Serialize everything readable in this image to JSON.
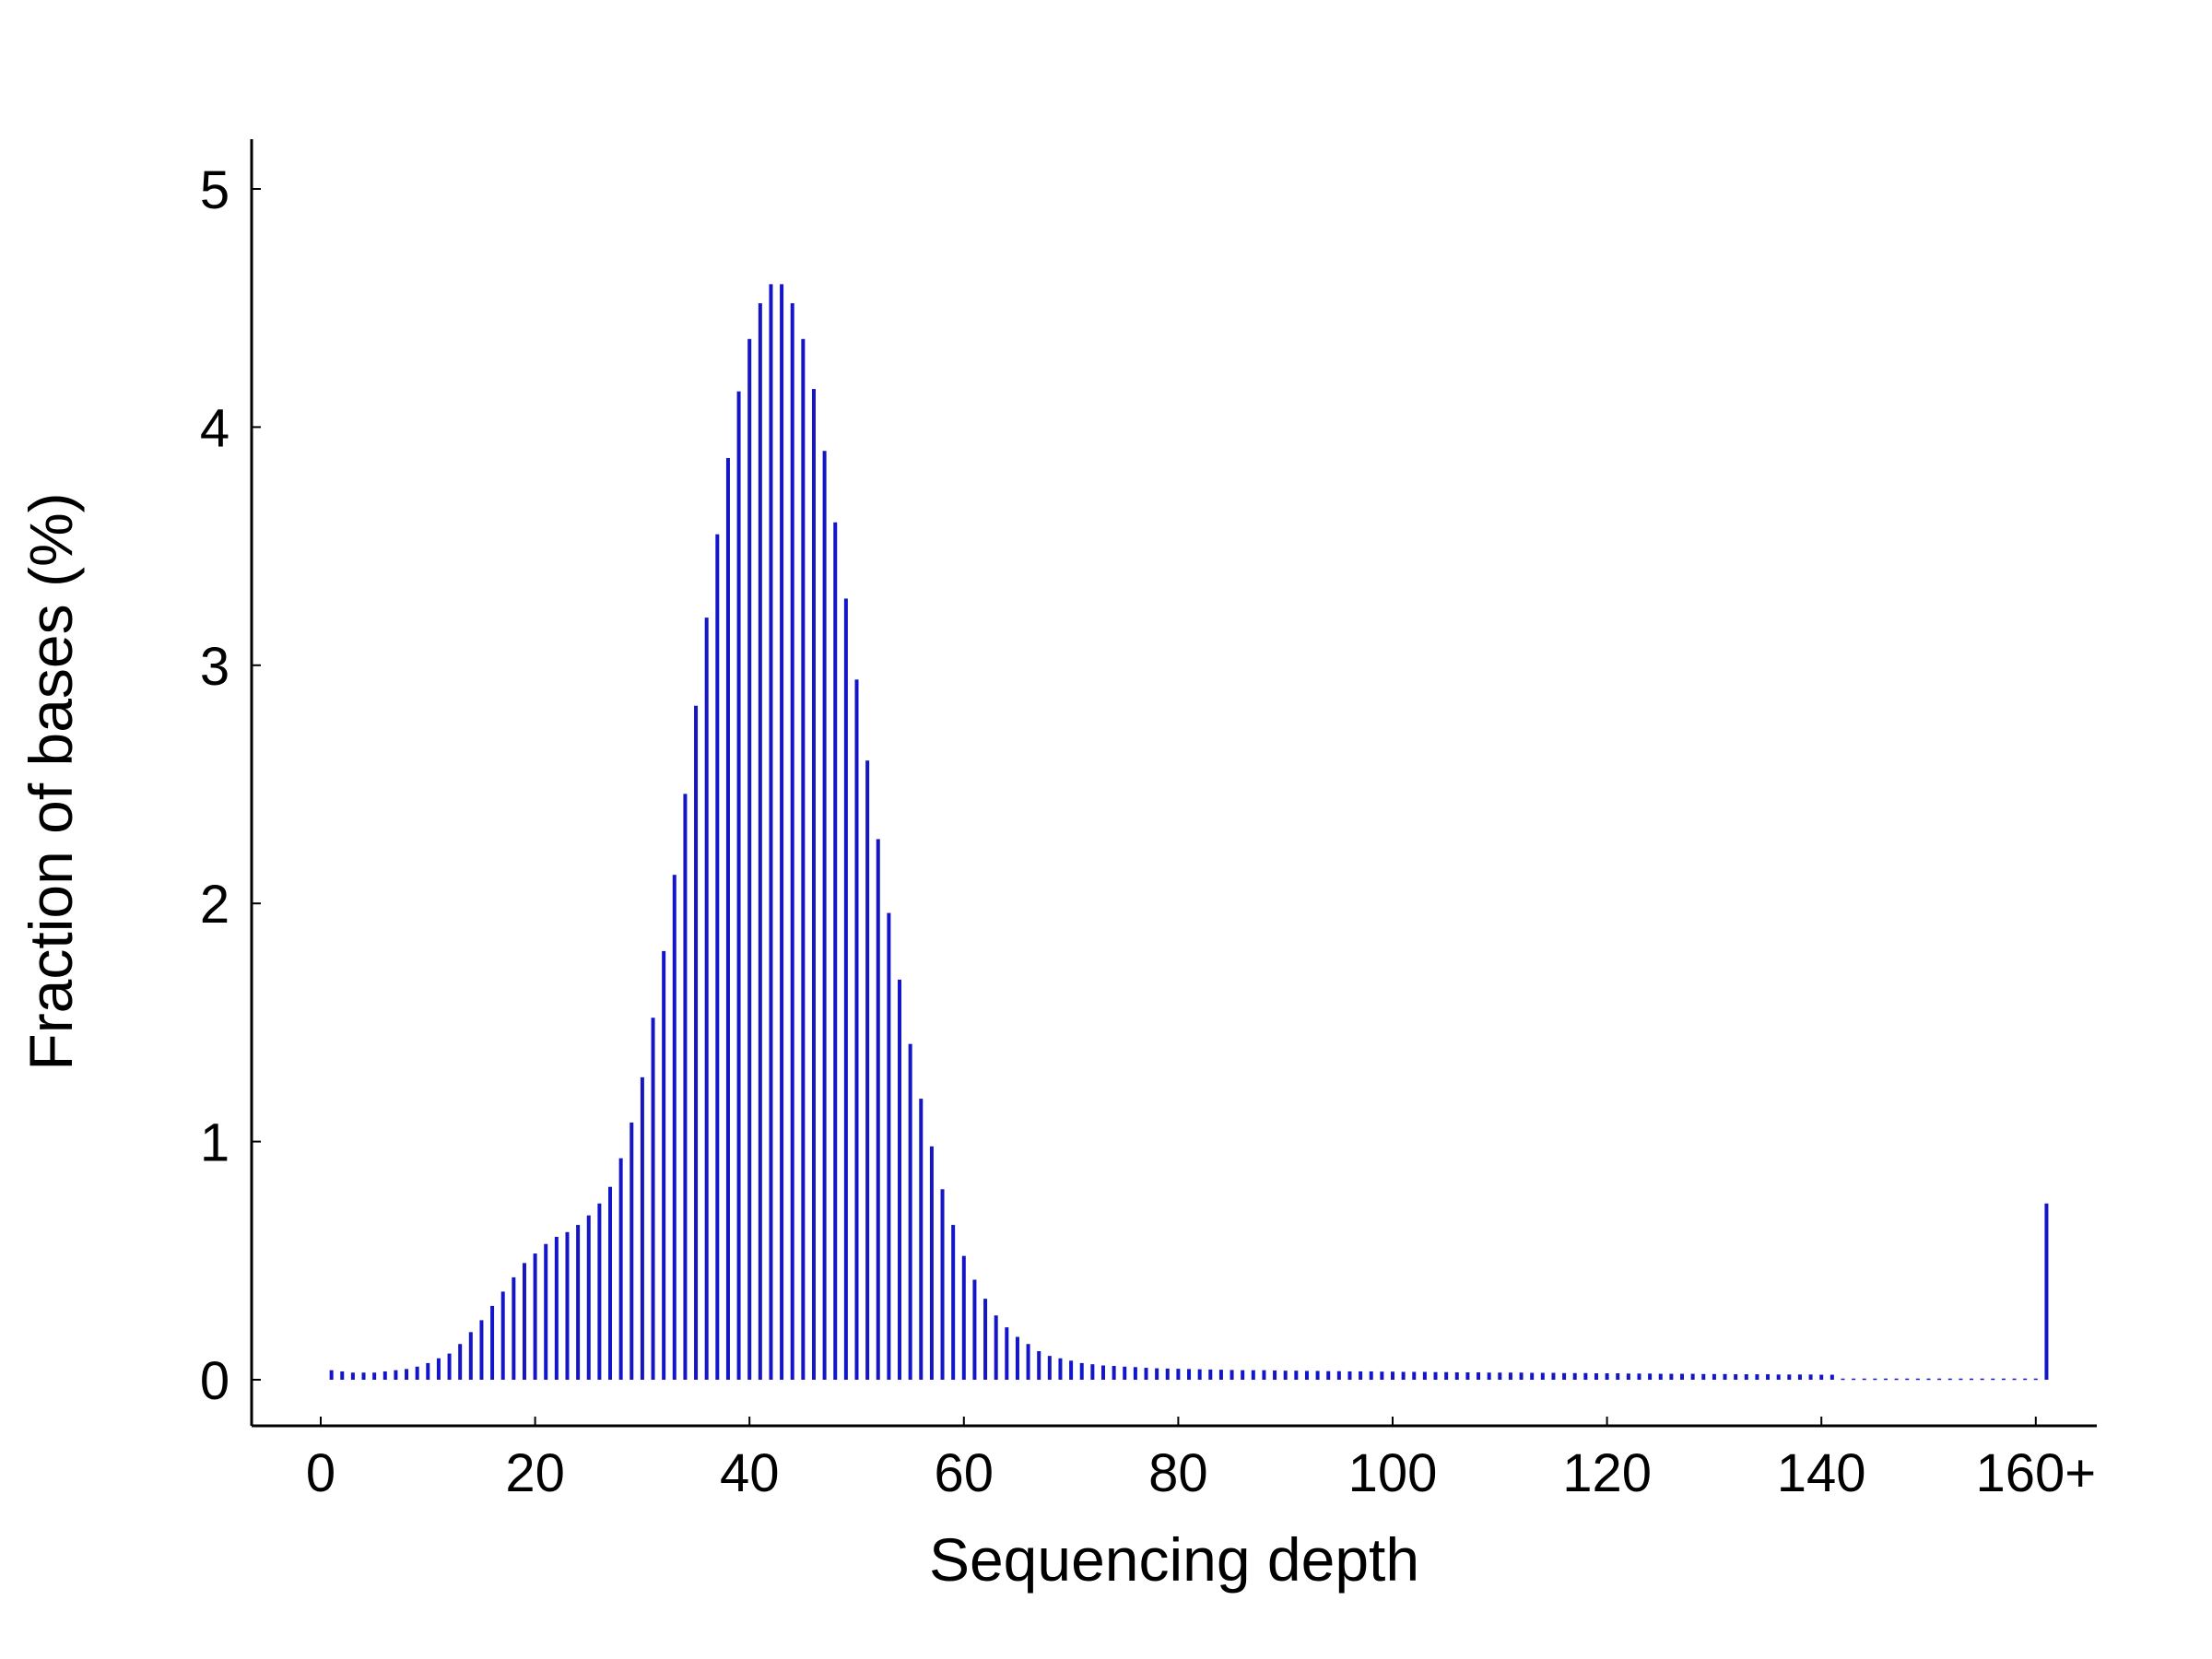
{
  "chart_data": {
    "type": "bar",
    "title": "",
    "xlabel": "Sequencing depth",
    "ylabel": "Fraction of bases (%)",
    "xlim": [
      0,
      163
    ],
    "ylim": [
      -0.2,
      5.2
    ],
    "xticks": [
      {
        "value": 0,
        "label": "0"
      },
      {
        "value": 20,
        "label": "20"
      },
      {
        "value": 40,
        "label": "40"
      },
      {
        "value": 60,
        "label": "60"
      },
      {
        "value": 80,
        "label": "80"
      },
      {
        "value": 100,
        "label": "100"
      },
      {
        "value": 120,
        "label": "120"
      },
      {
        "value": 140,
        "label": "140"
      },
      {
        "value": 160,
        "label": "160+"
      }
    ],
    "yticks": [
      {
        "value": 0,
        "label": "0"
      },
      {
        "value": 1,
        "label": "1"
      },
      {
        "value": 2,
        "label": "2"
      },
      {
        "value": 3,
        "label": "3"
      },
      {
        "value": 4,
        "label": "4"
      },
      {
        "value": 5,
        "label": "5"
      }
    ],
    "grid": false,
    "bar_color": "#1515c8",
    "x": [
      1,
      2,
      3,
      4,
      5,
      6,
      7,
      8,
      9,
      10,
      11,
      12,
      13,
      14,
      15,
      16,
      17,
      18,
      19,
      20,
      21,
      22,
      23,
      24,
      25,
      26,
      27,
      28,
      29,
      30,
      31,
      32,
      33,
      34,
      35,
      36,
      37,
      38,
      39,
      40,
      41,
      42,
      43,
      44,
      45,
      46,
      47,
      48,
      49,
      50,
      51,
      52,
      53,
      54,
      55,
      56,
      57,
      58,
      59,
      60,
      61,
      62,
      63,
      64,
      65,
      66,
      67,
      68,
      69,
      70,
      71,
      72,
      73,
      74,
      75,
      76,
      77,
      78,
      79,
      80,
      81,
      82,
      83,
      84,
      85,
      86,
      87,
      88,
      89,
      90,
      91,
      92,
      93,
      94,
      95,
      96,
      97,
      98,
      99,
      100,
      101,
      102,
      103,
      104,
      105,
      106,
      107,
      108,
      109,
      110,
      111,
      112,
      113,
      114,
      115,
      116,
      117,
      118,
      119,
      120,
      121,
      122,
      123,
      124,
      125,
      126,
      127,
      128,
      129,
      130,
      131,
      132,
      133,
      134,
      135,
      136,
      137,
      138,
      139,
      140,
      141,
      142,
      143,
      144,
      145,
      146,
      147,
      148,
      149,
      150,
      151,
      152,
      153,
      154,
      155,
      156,
      157,
      158,
      159,
      160,
      161
    ],
    "values": [
      0.04,
      0.035,
      0.03,
      0.03,
      0.03,
      0.035,
      0.04,
      0.045,
      0.055,
      0.07,
      0.09,
      0.11,
      0.15,
      0.2,
      0.25,
      0.31,
      0.37,
      0.43,
      0.49,
      0.53,
      0.57,
      0.6,
      0.62,
      0.65,
      0.69,
      0.74,
      0.81,
      0.93,
      1.08,
      1.27,
      1.52,
      1.8,
      2.12,
      2.46,
      2.83,
      3.2,
      3.55,
      3.87,
      4.15,
      4.37,
      4.52,
      4.6,
      4.6,
      4.52,
      4.37,
      4.16,
      3.9,
      3.6,
      3.28,
      2.94,
      2.6,
      2.27,
      1.96,
      1.68,
      1.41,
      1.18,
      0.98,
      0.8,
      0.65,
      0.52,
      0.42,
      0.34,
      0.27,
      0.22,
      0.18,
      0.15,
      0.12,
      0.1,
      0.09,
      0.08,
      0.07,
      0.065,
      0.06,
      0.058,
      0.055,
      0.053,
      0.05,
      0.048,
      0.047,
      0.046,
      0.045,
      0.044,
      0.043,
      0.042,
      0.041,
      0.04,
      0.04,
      0.04,
      0.039,
      0.038,
      0.038,
      0.037,
      0.037,
      0.036,
      0.036,
      0.035,
      0.035,
      0.035,
      0.034,
      0.034,
      0.033,
      0.033,
      0.033,
      0.032,
      0.032,
      0.031,
      0.031,
      0.031,
      0.03,
      0.03,
      0.03,
      0.03,
      0.029,
      0.029,
      0.029,
      0.028,
      0.028,
      0.028,
      0.027,
      0.027,
      0.027,
      0.026,
      0.026,
      0.026,
      0.025,
      0.025,
      0.025,
      0.025,
      0.024,
      0.024,
      0.024,
      0.023,
      0.023,
      0.023,
      0.023,
      0.022,
      0.022,
      0.022,
      0.022,
      0.021,
      0.021,
      0.005,
      0.005,
      0.005,
      0.005,
      0.005,
      0.005,
      0.005,
      0.005,
      0.005,
      0.005,
      0.005,
      0.005,
      0.005,
      0.005,
      0.005,
      0.005,
      0.005,
      0.005,
      0.005,
      0.74
    ]
  }
}
